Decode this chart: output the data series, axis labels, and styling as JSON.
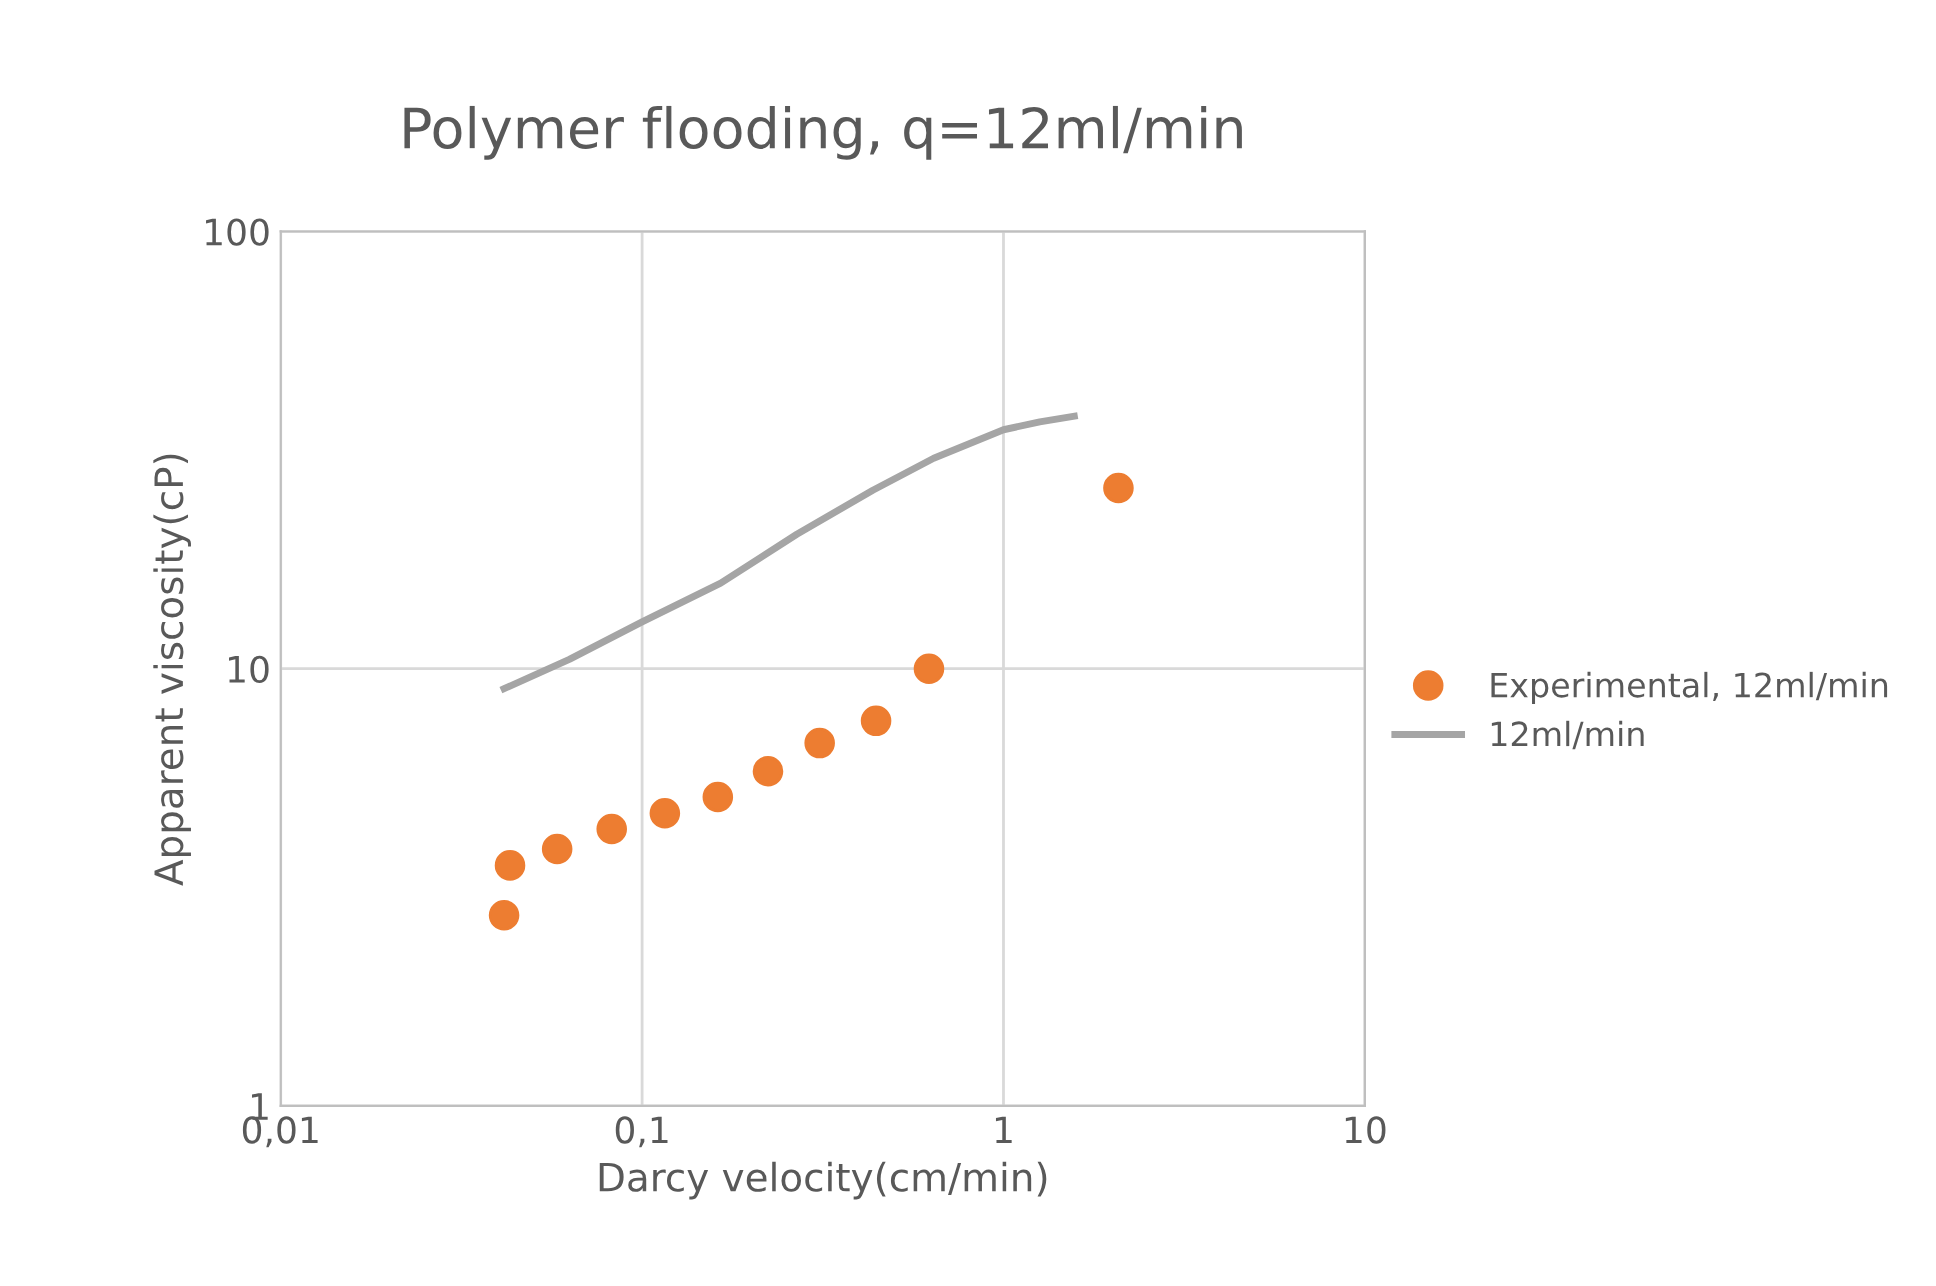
{
  "chart_data": {
    "type": "scatter",
    "title": "Polymer flooding, q=12ml/min",
    "xlabel": "Darcy velocity(cm/min)",
    "ylabel": "Apparent viscosity(cP)",
    "log": "xy",
    "xlim": [
      0.01,
      10
    ],
    "ylim": [
      1,
      100
    ],
    "xticks": [
      {
        "value": 0.01,
        "label": "0,01"
      },
      {
        "value": 0.1,
        "label": "0,1"
      },
      1,
      10
    ],
    "yticks": [
      1,
      10,
      100
    ],
    "grid": true,
    "legend": "right",
    "series": [
      {
        "name": "Experimental, 12ml/min",
        "marker": "circle",
        "color": "#ed7d31",
        "x": [
          0.0415,
          0.0431,
          0.0582,
          0.0824,
          0.1156,
          0.162,
          0.223,
          0.31,
          0.444,
          0.622,
          2.08
        ],
        "values": [
          2.73,
          3.55,
          3.87,
          4.3,
          4.67,
          5.09,
          5.83,
          6.76,
          7.6,
          10.0,
          25.9
        ]
      },
      {
        "name": "12ml/min",
        "type": "line",
        "color": "#a5a5a5",
        "x": [
          0.0415,
          0.0629,
          0.1,
          0.165,
          0.268,
          0.435,
          0.641,
          1.0,
          1.26,
          1.57
        ],
        "values": [
          9.0,
          10.5,
          12.8,
          15.7,
          20.3,
          25.6,
          30.3,
          35.2,
          36.7,
          37.8
        ]
      }
    ]
  }
}
